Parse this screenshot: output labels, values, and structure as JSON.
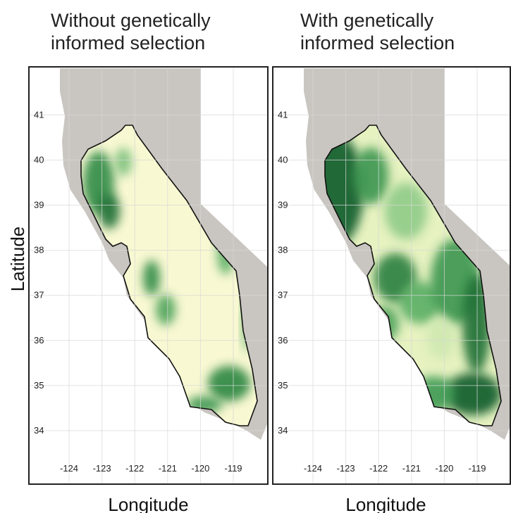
{
  "panels": [
    {
      "title": [
        "Without genetically",
        "informed selection"
      ],
      "xlabel": "Longitude"
    },
    {
      "title": [
        "With genetically",
        "informed selection"
      ],
      "xlabel": "Longitude"
    }
  ],
  "ylabel": "Latitude",
  "xlim": [
    -125.2,
    -117.9
  ],
  "ylim": [
    33.05,
    42.05
  ],
  "xticks": [
    -124,
    -123,
    -122,
    -121,
    -120,
    -119
  ],
  "yticks": [
    34,
    35,
    36,
    37,
    38,
    39,
    40,
    41
  ]
}
